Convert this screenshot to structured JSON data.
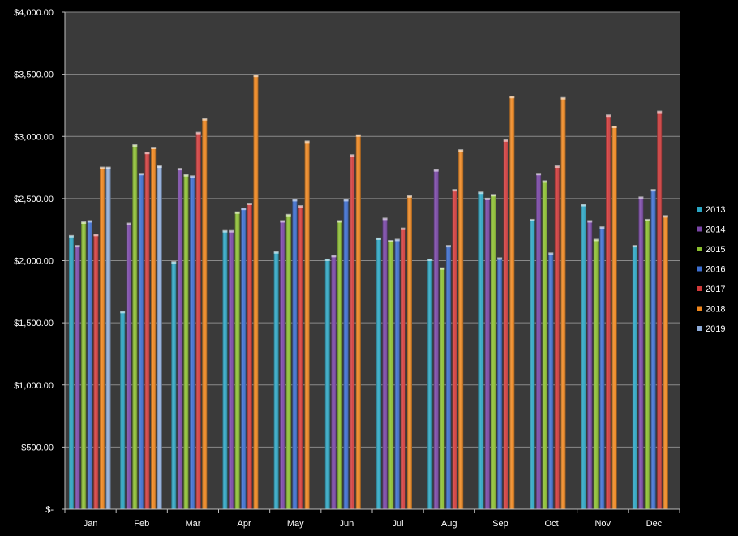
{
  "chart_data": {
    "type": "bar",
    "categories": [
      "Jan",
      "Feb",
      "Mar",
      "Apr",
      "May",
      "Jun",
      "Jul",
      "Aug",
      "Sep",
      "Oct",
      "Nov",
      "Dec"
    ],
    "series": [
      {
        "name": "2013",
        "color": "#2aa6c4",
        "values": [
          2200,
          1590,
          1990,
          2240,
          2070,
          2010,
          2180,
          2010,
          2550,
          2330,
          2450,
          2120
        ]
      },
      {
        "name": "2014",
        "color": "#7a46a8",
        "values": [
          2120,
          2300,
          2740,
          2240,
          2320,
          2040,
          2340,
          2730,
          2500,
          2700,
          2320,
          2510
        ]
      },
      {
        "name": "2015",
        "color": "#8bbf2e",
        "values": [
          2310,
          2930,
          2690,
          2390,
          2370,
          2320,
          2160,
          1940,
          2530,
          2640,
          2170,
          2330
        ]
      },
      {
        "name": "2016",
        "color": "#3d6fd1",
        "values": [
          2320,
          2700,
          2680,
          2420,
          2490,
          2490,
          2170,
          2120,
          2020,
          2060,
          2270,
          2570
        ]
      },
      {
        "name": "2017",
        "color": "#d23a3a",
        "values": [
          2210,
          2870,
          3030,
          2460,
          2440,
          2850,
          2260,
          2570,
          2970,
          2760,
          3170,
          3200
        ]
      },
      {
        "name": "2018",
        "color": "#f0861c",
        "values": [
          2750,
          2910,
          3140,
          3490,
          2960,
          3010,
          2520,
          2890,
          3320,
          3310,
          3080,
          2360
        ]
      },
      {
        "name": "2019",
        "color": "#8eacd9",
        "values": [
          2750,
          2760,
          null,
          null,
          null,
          null,
          null,
          null,
          null,
          null,
          null,
          null
        ]
      }
    ],
    "title": "",
    "xlabel": "",
    "ylabel": "",
    "ylim": [
      0,
      4000
    ],
    "yticks": [
      0,
      500,
      1000,
      1500,
      2000,
      2500,
      3000,
      3500,
      4000
    ],
    "ytick_labels": [
      "$-",
      "$500.00",
      "$1,000.00",
      "$1,500.00",
      "$2,000.00",
      "$2,500.00",
      "$3,000.00",
      "$3,500.00",
      "$4,000.00"
    ],
    "grid": true,
    "legend_position": "right",
    "plot_background": "#3a3a3a",
    "page_background": "#000000"
  }
}
